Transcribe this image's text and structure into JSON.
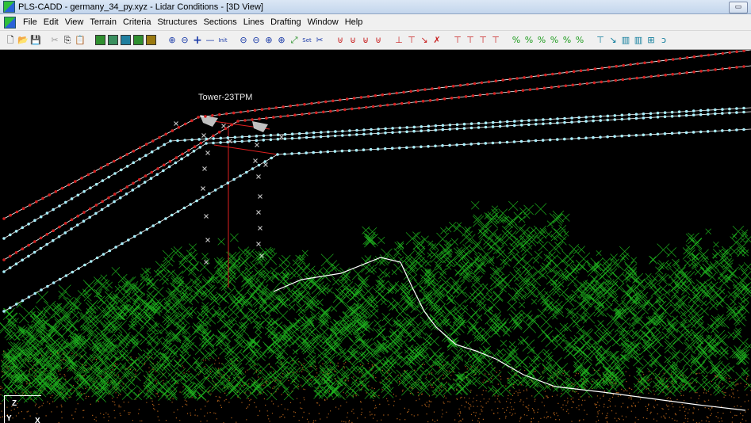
{
  "window": {
    "title": "PLS-CADD - germany_34_py.xyz - Lidar Conditions - [3D View]",
    "restore_glyph": "▭"
  },
  "menu": [
    "File",
    "Edit",
    "View",
    "Terrain",
    "Criteria",
    "Structures",
    "Sections",
    "Lines",
    "Drafting",
    "Window",
    "Help"
  ],
  "toolbar": {
    "file_icons": [
      "new-file-icon",
      "open-folder-icon",
      "save-icon",
      "cut-icon",
      "copy-icon",
      "paste-icon"
    ],
    "file_glyphs": [
      "🗋",
      "📂",
      "💾",
      "✂",
      "⎘",
      "📋"
    ],
    "view_squares": [
      {
        "name": "terrain-view-icon",
        "color": "#2f8f2f"
      },
      {
        "name": "profile-view-icon",
        "color": "#2f8f2f"
      },
      {
        "name": "plan-view-icon",
        "color": "#1f7f7f"
      },
      {
        "name": "3d-view-icon",
        "color": "#2f8f2f"
      },
      {
        "name": "sheet-view-icon",
        "color": "#8a6a00"
      }
    ],
    "zoom_glyphs": [
      "⊕",
      "⊖",
      "+",
      "—"
    ],
    "zoom_init": "Init",
    "rotate_glyphs": [
      "⊖",
      "⊖",
      "⊕",
      "⊕"
    ],
    "set_label": "Set",
    "red_tool_glyphs": [
      "⊎",
      "⊍",
      "⊌",
      "⊎"
    ],
    "red_line_glyphs": [
      "⊥",
      "⊤",
      "↘",
      "✗"
    ],
    "red2_glyphs": [
      "⊤",
      "⊤",
      "⊤",
      "⊤"
    ],
    "green_glyphs": [
      "%",
      "%",
      "%",
      "%",
      "%",
      "%"
    ],
    "teal_glyphs": [
      "⊤",
      "↘",
      "▥",
      "▥",
      "⊞",
      "ↄ"
    ]
  },
  "scene": {
    "tower_label": "Tower-23TPM",
    "axis_z": "Z",
    "axis_y": "Y",
    "axis_x": "X",
    "colors": {
      "background": "#000000",
      "conductor_red": "#d42020",
      "conductor_cyan": "#a8f0ff",
      "vegetation": "#1fbf1f",
      "ground": "#b0601a",
      "tower": "#e02020",
      "points_gray": "#c0c0c0",
      "wire_white": "#ffffff"
    }
  }
}
